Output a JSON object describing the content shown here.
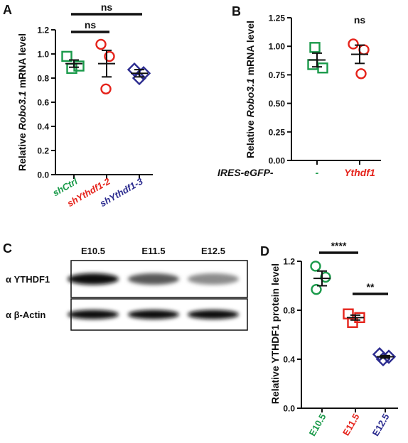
{
  "panels": {
    "A": "A",
    "B": "B",
    "C": "C",
    "D": "D"
  },
  "colors": {
    "green": "#1a9a4a",
    "red": "#e5231b",
    "navy": "#2b2b8f",
    "black": "#111111"
  },
  "chart_data": [
    {
      "panel": "A",
      "type": "scatter",
      "ylabel_prefix": "Relative ",
      "ylabel_italic": "Robo3.1",
      "ylabel_suffix": " mRNA level",
      "ylim": [
        0,
        1.2
      ],
      "yticks": [
        "0.0",
        "0.2",
        "0.4",
        "0.6",
        "0.8",
        "1.0",
        "1.2"
      ],
      "categories": [
        "shCtrl",
        "shYthdf1-2",
        "shYthdf1-3"
      ],
      "category_colors": [
        "#1a9a4a",
        "#e5231b",
        "#2b2b8f"
      ],
      "markers": [
        "square",
        "circle",
        "diamond"
      ],
      "points": [
        [
          0.98,
          0.9,
          0.88
        ],
        [
          1.08,
          0.98,
          0.71
        ],
        [
          0.87,
          0.84,
          0.8
        ]
      ],
      "means": [
        0.92,
        0.92,
        0.84
      ],
      "sem": [
        0.03,
        0.11,
        0.03
      ],
      "significance": [
        {
          "from": 0,
          "to": 1,
          "label": "ns"
        },
        {
          "from": 0,
          "to": 2,
          "label": "ns"
        }
      ]
    },
    {
      "panel": "B",
      "type": "scatter",
      "ylabel_prefix": "Relative ",
      "ylabel_italic": "Robo3.1",
      "ylabel_suffix": " mRNA level",
      "ylim": [
        0,
        1.25
      ],
      "yticks": [
        "0.00",
        "0.25",
        "0.50",
        "0.75",
        "1.00",
        "1.25"
      ],
      "group_axis_label": "IRES-eGFP-",
      "categories": [
        "-",
        "Ythdf1"
      ],
      "category_colors": [
        "#1a9a4a",
        "#e5231b"
      ],
      "markers": [
        "square",
        "circle"
      ],
      "points": [
        [
          0.99,
          0.81,
          0.84
        ],
        [
          1.02,
          0.97,
          0.76
        ]
      ],
      "means": [
        0.88,
        0.93
      ],
      "sem": [
        0.06,
        0.08
      ],
      "significance": [
        {
          "from": 1,
          "to": 1,
          "label": "ns"
        }
      ]
    },
    {
      "panel": "D",
      "type": "scatter",
      "ylabel": "Relative YTHDF1 protein level",
      "ylim": [
        0,
        1.2
      ],
      "yticks": [
        "0.0",
        "0.4",
        "0.8",
        "1.2"
      ],
      "categories": [
        "E10.5",
        "E11.5",
        "E12.5"
      ],
      "category_colors": [
        "#1a9a4a",
        "#e5231b",
        "#2b2b8f"
      ],
      "markers": [
        "circle",
        "square",
        "diamond"
      ],
      "points": [
        [
          1.16,
          1.07,
          0.97
        ],
        [
          0.77,
          0.74,
          0.7
        ],
        [
          0.44,
          0.42,
          0.4
        ]
      ],
      "means": [
        1.06,
        0.74,
        0.42
      ],
      "sem": [
        0.06,
        0.02,
        0.01
      ],
      "significance": [
        {
          "from": 0,
          "to": 1,
          "label": "****"
        },
        {
          "from": 1,
          "to": 2,
          "label": "**"
        }
      ]
    }
  ],
  "blot": {
    "lanes": [
      "E10.5",
      "E11.5",
      "E12.5"
    ],
    "rows": [
      {
        "label": "α YTHDF1",
        "intensities": [
          0.95,
          0.65,
          0.45
        ]
      },
      {
        "label": "α β-Actin",
        "intensities": [
          0.95,
          0.95,
          0.95
        ]
      }
    ]
  }
}
